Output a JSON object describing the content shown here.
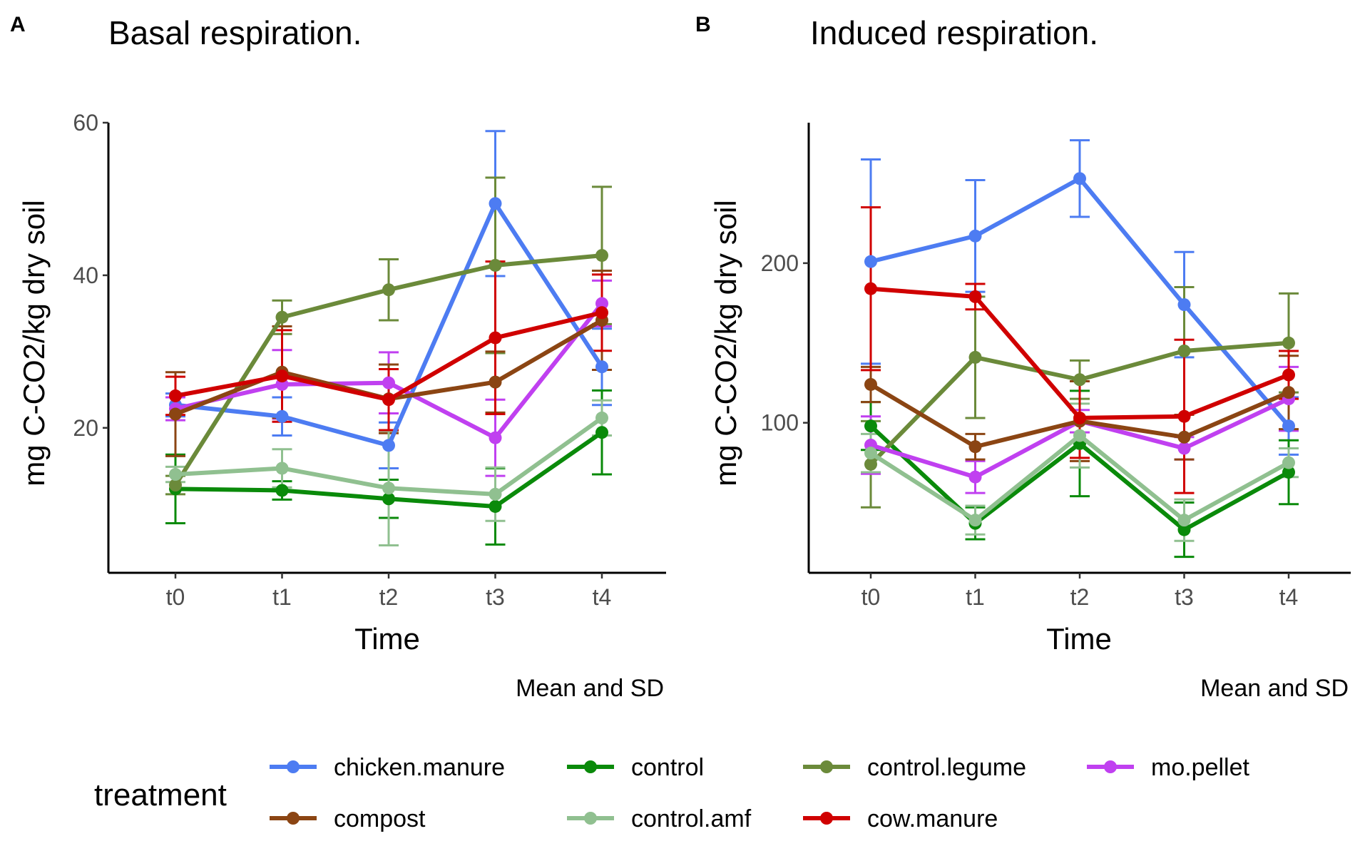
{
  "legend": {
    "title": "treatment",
    "items": [
      {
        "name": "chicken.manure",
        "color": "#4d7cf2"
      },
      {
        "name": "control",
        "color": "#0a8a0a"
      },
      {
        "name": "control.legume",
        "color": "#6b8a3a"
      },
      {
        "name": "mo.pellet",
        "color": "#c040f0"
      },
      {
        "name": "compost",
        "color": "#8b4513"
      },
      {
        "name": "control.amf",
        "color": "#90c090"
      },
      {
        "name": "cow.manure",
        "color": "#d00000"
      }
    ]
  },
  "chart_data": [
    {
      "type": "line",
      "panel_tag": "A",
      "title": "Basal respiration.",
      "xlabel": "Time",
      "ylabel": "mg C-CO2/kg dry soil",
      "caption": "Mean and SD",
      "categories": [
        "t0",
        "t1",
        "t2",
        "t3",
        "t4"
      ],
      "ylim": [
        1,
        60
      ],
      "yticks": [
        20,
        40,
        60
      ],
      "error_bars": "sd",
      "series": [
        {
          "name": "chicken.manure",
          "values": [
            23,
            21.5,
            17.7,
            49.4,
            28
          ],
          "sd": [
            1.5,
            2.5,
            3,
            9.5,
            5
          ]
        },
        {
          "name": "control",
          "values": [
            12,
            11.8,
            10.7,
            9.7,
            19.4
          ],
          "sd": [
            4.5,
            1.2,
            2.5,
            5,
            5.5
          ]
        },
        {
          "name": "control.legume",
          "values": [
            12.5,
            34.5,
            38.1,
            41.3,
            42.6
          ],
          "sd": [
            1.2,
            2.2,
            4,
            11.5,
            9
          ]
        },
        {
          "name": "mo.pellet",
          "values": [
            22.5,
            25.7,
            25.9,
            18.7,
            36.3
          ],
          "sd": [
            1.5,
            4.5,
            4,
            5,
            3
          ]
        },
        {
          "name": "compost",
          "values": [
            21.8,
            27.3,
            23.8,
            26,
            34.1
          ],
          "sd": [
            5.5,
            6,
            4.5,
            4,
            6.5
          ]
        },
        {
          "name": "control.amf",
          "values": [
            13.9,
            14.7,
            12.1,
            11.3,
            21.3
          ],
          "sd": [
            1,
            2.5,
            7.5,
            3.5,
            2.3
          ]
        },
        {
          "name": "cow.manure",
          "values": [
            24.2,
            26.8,
            23.7,
            31.8,
            35.1
          ],
          "sd": [
            2.5,
            6,
            4,
            10,
            5
          ]
        }
      ]
    },
    {
      "type": "line",
      "panel_tag": "B",
      "title": "Induced respiration.",
      "xlabel": "Time",
      "ylabel": "mg C-CO2/kg dry soil",
      "caption": "Mean and SD",
      "categories": [
        "t0",
        "t1",
        "t2",
        "t3",
        "t4"
      ],
      "ylim": [
        6,
        288
      ],
      "yticks": [
        100,
        200
      ],
      "error_bars": "sd",
      "series": [
        {
          "name": "chicken.manure",
          "values": [
            201,
            217,
            253,
            174,
            98
          ],
          "sd": [
            64,
            35,
            24,
            33,
            18
          ]
        },
        {
          "name": "control",
          "values": [
            98,
            37,
            87,
            33,
            69
          ],
          "sd": [
            15,
            10,
            33,
            17,
            20
          ]
        },
        {
          "name": "control.legume",
          "values": [
            74,
            141,
            127,
            145,
            150
          ],
          "sd": [
            27,
            38,
            12,
            40,
            31
          ]
        },
        {
          "name": "mo.pellet",
          "values": [
            86,
            66,
            101,
            84,
            115
          ],
          "sd": [
            18,
            10,
            7,
            7,
            20
          ]
        },
        {
          "name": "compost",
          "values": [
            124,
            85,
            101,
            91,
            119
          ],
          "sd": [
            11,
            8,
            25,
            14,
            23
          ]
        },
        {
          "name": "control.amf",
          "values": [
            81,
            39,
            92,
            39,
            75
          ],
          "sd": [
            12,
            9,
            20,
            13,
            9
          ]
        },
        {
          "name": "cow.manure",
          "values": [
            184,
            179,
            103,
            104,
            130
          ],
          "sd": [
            51,
            8,
            25,
            48,
            15
          ]
        }
      ]
    }
  ]
}
